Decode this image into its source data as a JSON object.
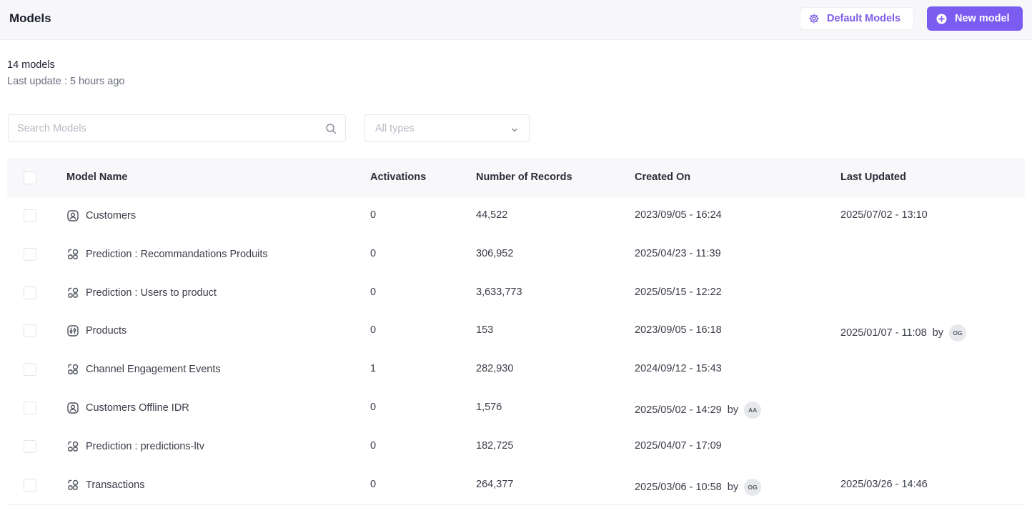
{
  "header": {
    "title": "Models",
    "default_models_label": "Default Models",
    "new_model_label": "New model"
  },
  "summary": {
    "count": "14 models",
    "last_update": "Last update : 5 hours ago"
  },
  "filters": {
    "search_placeholder": "Search Models",
    "type_value": "All types"
  },
  "table": {
    "columns": [
      "Model Name",
      "Activations",
      "Number of Records",
      "Created On",
      "Last Updated"
    ],
    "by_label": "by",
    "rows": [
      {
        "icon": "user-icon",
        "name": "Customers",
        "activations": "0",
        "records": "44,522",
        "created": "2023/09/05 - 16:24",
        "created_by": "",
        "updated": "2025/07/02 - 13:10",
        "updated_by": ""
      },
      {
        "icon": "prediction-icon",
        "name": "Prediction : Recommandations Produits",
        "activations": "0",
        "records": "306,952",
        "created": "2025/04/23 - 11:39",
        "created_by": "",
        "updated": "",
        "updated_by": ""
      },
      {
        "icon": "prediction-icon",
        "name": "Prediction : Users to product",
        "activations": "0",
        "records": "3,633,773",
        "created": "2025/05/15 - 12:22",
        "created_by": "",
        "updated": "",
        "updated_by": ""
      },
      {
        "icon": "product-icon",
        "name": "Products",
        "activations": "0",
        "records": "153",
        "created": "2023/09/05 - 16:18",
        "created_by": "",
        "updated": "2025/01/07 - 11:08",
        "updated_by": "OG"
      },
      {
        "icon": "prediction-icon",
        "name": "Channel Engagement Events",
        "activations": "1",
        "records": "282,930",
        "created": "2024/09/12 - 15:43",
        "created_by": "",
        "updated": "",
        "updated_by": ""
      },
      {
        "icon": "user-icon",
        "name": "Customers Offline IDR",
        "activations": "0",
        "records": "1,576",
        "created": "2025/05/02 - 14:29",
        "created_by": "AA",
        "updated": "",
        "updated_by": ""
      },
      {
        "icon": "prediction-icon",
        "name": "Prediction : predictions-ltv",
        "activations": "0",
        "records": "182,725",
        "created": "2025/04/07 - 17:09",
        "created_by": "",
        "updated": "",
        "updated_by": ""
      },
      {
        "icon": "prediction-icon",
        "name": "Transactions",
        "activations": "0",
        "records": "264,377",
        "created": "2025/03/06 - 10:58",
        "created_by": "OG",
        "updated": "2025/03/26 - 14:46",
        "updated_by": ""
      }
    ]
  },
  "colors": {
    "accent": "#7b5cf0",
    "accent_text": "#7d5ce6"
  }
}
